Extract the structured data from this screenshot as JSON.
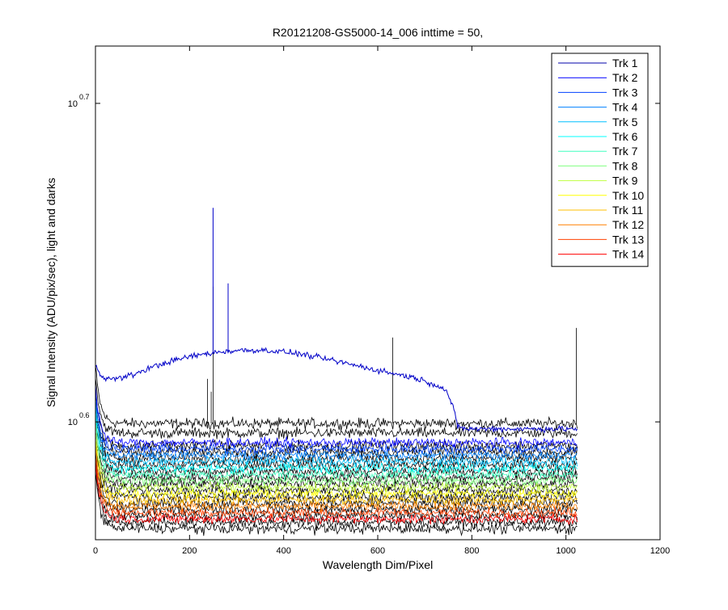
{
  "chart_data": {
    "type": "line",
    "title": "R20121208-GS5000-14_006 inttime = 50,",
    "xlabel": "Wavelength Dim/Pixel",
    "ylabel": "Signal Intensity (ADU/pix/sec), light and darks",
    "xlim": [
      0,
      1200
    ],
    "xticks": [
      0,
      200,
      400,
      600,
      800,
      1000,
      1200
    ],
    "ylim_log10": [
      0.563,
      0.718
    ],
    "yscale": "log",
    "yticks": [
      {
        "base": "10",
        "exponent": "0.6",
        "log10": 0.6
      },
      {
        "base": "10",
        "exponent": "0.7",
        "log10": 0.7
      }
    ],
    "legend_position": "top-right",
    "grid": false,
    "x_range_of_data": [
      0,
      1024
    ],
    "light_series": [
      {
        "name": "Trk 1",
        "color": "#0000A8",
        "plateau_log10": 0.598
      },
      {
        "name": "Trk 2",
        "color": "#0000FF",
        "plateau_log10": 0.5935
      },
      {
        "name": "Trk 3",
        "color": "#0040FF",
        "plateau_log10": 0.5915
      },
      {
        "name": "Trk 4",
        "color": "#0080FF",
        "plateau_log10": 0.5895
      },
      {
        "name": "Trk 5",
        "color": "#00BFFF",
        "plateau_log10": 0.5875
      },
      {
        "name": "Trk 6",
        "color": "#00FFFF",
        "plateau_log10": 0.5855
      },
      {
        "name": "Trk 7",
        "color": "#40FFBF",
        "plateau_log10": 0.5835
      },
      {
        "name": "Trk 8",
        "color": "#80FF80",
        "plateau_log10": 0.5815
      },
      {
        "name": "Trk 9",
        "color": "#BFFF40",
        "plateau_log10": 0.5795
      },
      {
        "name": "Trk 10",
        "color": "#FFFF00",
        "plateau_log10": 0.5775
      },
      {
        "name": "Trk 11",
        "color": "#FFBF00",
        "plateau_log10": 0.5755
      },
      {
        "name": "Trk 12",
        "color": "#FF8000",
        "plateau_log10": 0.5735
      },
      {
        "name": "Trk 13",
        "color": "#FF4000",
        "plateau_log10": 0.5715
      },
      {
        "name": "Trk 14",
        "color": "#FF0000",
        "plateau_log10": 0.5695
      }
    ],
    "highlight_series": {
      "color": "#0000C8",
      "points": [
        [
          0,
          0.6175
        ],
        [
          10,
          0.6155
        ],
        [
          20,
          0.6135
        ],
        [
          40,
          0.6135
        ],
        [
          60,
          0.614
        ],
        [
          80,
          0.6148
        ],
        [
          120,
          0.6172
        ],
        [
          160,
          0.619
        ],
        [
          200,
          0.6205
        ],
        [
          240,
          0.6215
        ],
        [
          280,
          0.6222
        ],
        [
          320,
          0.6225
        ],
        [
          360,
          0.6225
        ],
        [
          400,
          0.622
        ],
        [
          440,
          0.6212
        ],
        [
          480,
          0.62
        ],
        [
          520,
          0.6188
        ],
        [
          560,
          0.6175
        ],
        [
          600,
          0.6162
        ],
        [
          640,
          0.615
        ],
        [
          680,
          0.6138
        ],
        [
          700,
          0.6128
        ],
        [
          720,
          0.6118
        ],
        [
          740,
          0.6105
        ],
        [
          750,
          0.6085
        ],
        [
          760,
          0.6045
        ],
        [
          770,
          0.5985
        ],
        [
          790,
          0.5978
        ],
        [
          1024,
          0.5978
        ]
      ],
      "spikes": [
        [
          250,
          0.6672
        ],
        [
          282,
          0.6435
        ]
      ]
    },
    "dark_series": {
      "color": "#000000",
      "plateau_log10": [
        0.5995,
        0.5965,
        0.5925,
        0.5905,
        0.5885,
        0.5865,
        0.5845,
        0.5825,
        0.5805,
        0.5785,
        0.5765,
        0.5745,
        0.5725,
        0.5705,
        0.5685,
        0.5665
      ],
      "spikes": [
        [
          238,
          0.6135
        ],
        [
          246,
          0.6095
        ],
        [
          250,
          0.6425
        ],
        [
          632,
          0.6265
        ],
        [
          1022,
          0.6295
        ]
      ]
    }
  }
}
